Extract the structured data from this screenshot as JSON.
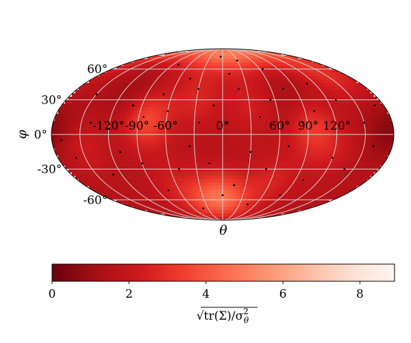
{
  "chart_data": {
    "type": "heatmap",
    "projection": "mollweide",
    "xlabel": "θ",
    "ylabel": "φ",
    "lon_ticks": [
      -120,
      -90,
      -60,
      0,
      60,
      90,
      120
    ],
    "lon_tick_labels": [
      "-120°",
      "-90°",
      "-60°",
      "0°",
      "60°",
      "90°",
      "120°"
    ],
    "lat_ticks": [
      60,
      30,
      0,
      -30,
      -60
    ],
    "lat_tick_labels": [
      "60°",
      "30°",
      "0°",
      "-30°",
      "-60°"
    ],
    "grid": true,
    "colormap": "Reds",
    "colorbar": {
      "label": "√tr(Σ)/σ²θ",
      "label_main": "√tr(Σ)/σ",
      "label_sup": "2",
      "label_sub": "θ",
      "range": [
        0,
        8.9
      ],
      "ticks": [
        0,
        2,
        4,
        6,
        8
      ],
      "tick_labels": [
        "0",
        "2",
        "4",
        "6",
        "8"
      ],
      "position": "bottom"
    },
    "value_field": {
      "background": 1.6,
      "blobs": [
        {
          "lon": 10,
          "lat": 82,
          "value": 5.0
        },
        {
          "lon": -5,
          "lat": -58,
          "value": 4.6
        },
        {
          "lon": -80,
          "lat": 12,
          "value": 3.6
        },
        {
          "lon": 95,
          "lat": 5,
          "value": 3.2
        },
        {
          "lon": -30,
          "lat": 30,
          "value": 2.6
        },
        {
          "lon": 150,
          "lat": 55,
          "value": 2.8
        },
        {
          "lon": -150,
          "lat": -10,
          "value": 2.4
        },
        {
          "lon": 60,
          "lat": -40,
          "value": 2.5
        },
        {
          "lon": 30,
          "lat": 25,
          "value": 2.4
        },
        {
          "lon": -60,
          "lat": -45,
          "value": 2.3
        },
        {
          "lon": 120,
          "lat": -15,
          "value": 2.2
        },
        {
          "lon": 170,
          "lat": 0,
          "value": 0.9
        },
        {
          "lon": -170,
          "lat": 5,
          "value": 1.0
        },
        {
          "lon": -110,
          "lat": 40,
          "value": 1.0
        },
        {
          "lon": 80,
          "lat": 35,
          "value": 1.1
        }
      ]
    },
    "points": [
      {
        "lon": -140,
        "lat": 10
      },
      {
        "lon": -120,
        "lat": 5
      },
      {
        "lon": -110,
        "lat": -15
      },
      {
        "lon": -160,
        "lat": -20
      },
      {
        "lon": -100,
        "lat": 25
      },
      {
        "lon": -85,
        "lat": 15
      },
      {
        "lon": -70,
        "lat": 35
      },
      {
        "lon": -60,
        "lat": 20
      },
      {
        "lon": -45,
        "lat": 50
      },
      {
        "lon": -30,
        "lat": 40
      },
      {
        "lon": -25,
        "lat": 10
      },
      {
        "lon": -10,
        "lat": 25
      },
      {
        "lon": 5,
        "lat": 10
      },
      {
        "lon": 20,
        "lat": 40
      },
      {
        "lon": 30,
        "lat": 70
      },
      {
        "lon": 40,
        "lat": 15
      },
      {
        "lon": 55,
        "lat": 30
      },
      {
        "lon": 75,
        "lat": 40
      },
      {
        "lon": 85,
        "lat": 10
      },
      {
        "lon": 100,
        "lat": 20
      },
      {
        "lon": 110,
        "lat": 45
      },
      {
        "lon": 130,
        "lat": 30
      },
      {
        "lon": 150,
        "lat": 10
      },
      {
        "lon": 160,
        "lat": -10
      },
      {
        "lon": 140,
        "lat": -30
      },
      {
        "lon": 120,
        "lat": -20
      },
      {
        "lon": 100,
        "lat": -40
      },
      {
        "lon": 70,
        "lat": -10
      },
      {
        "lon": 50,
        "lat": -30
      },
      {
        "lon": 30,
        "lat": -15
      },
      {
        "lon": 15,
        "lat": -45
      },
      {
        "lon": 0,
        "lat": -55
      },
      {
        "lon": -15,
        "lat": -25
      },
      {
        "lon": -35,
        "lat": -10
      },
      {
        "lon": -50,
        "lat": -30
      },
      {
        "lon": -75,
        "lat": -50
      },
      {
        "lon": -90,
        "lat": -25
      },
      {
        "lon": -130,
        "lat": -35
      },
      {
        "lon": -5,
        "lat": 75
      },
      {
        "lon": -80,
        "lat": 65
      },
      {
        "lon": 65,
        "lat": 60
      },
      {
        "lon": -150,
        "lat": 35
      },
      {
        "lon": 170,
        "lat": 25
      },
      {
        "lon": 45,
        "lat": -65
      },
      {
        "lon": -40,
        "lat": -70
      },
      {
        "lon": 85,
        "lat": -55
      },
      {
        "lon": -170,
        "lat": -5
      },
      {
        "lon": 10,
        "lat": 55
      }
    ]
  }
}
